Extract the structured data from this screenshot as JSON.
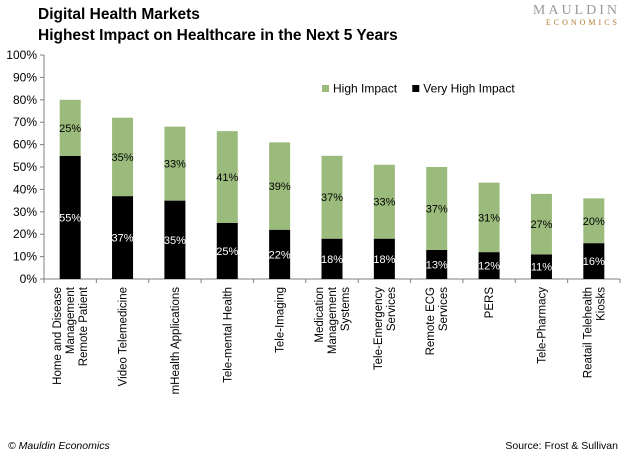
{
  "header": {
    "title_line1": "Digital Health Markets",
    "title_line2": "Highest Impact on Healthcare in the Next 5 Years",
    "logo_line1": "MAULDIN",
    "logo_line2": "ECONOMICS"
  },
  "footer": {
    "copyright": "© Mauldin Economics",
    "source": "Source: Frost & Sullivan"
  },
  "colors": {
    "high_impact": "#9bbb7c",
    "very_high_impact": "#000000",
    "axis": "#808080"
  },
  "chart_data": {
    "type": "bar",
    "stacked": true,
    "title": "",
    "xlabel": "",
    "ylabel": "",
    "ylim": [
      0,
      100
    ],
    "y_ticks": [
      "0%",
      "10%",
      "20%",
      "30%",
      "40%",
      "50%",
      "60%",
      "70%",
      "80%",
      "90%",
      "100%"
    ],
    "legend_position": "top-right",
    "categories": [
      [
        "Home and Disease",
        "Management",
        "Remote Patient"
      ],
      [
        "Video Telemedicine"
      ],
      [
        "mHealth Applications"
      ],
      [
        "Tele-mental Health"
      ],
      [
        "Tele-Imaging"
      ],
      [
        "Medication",
        "Management",
        "Systems"
      ],
      [
        "Tele-Emergency",
        "Services"
      ],
      [
        "Remote ECG",
        "Services"
      ],
      [
        "PERS"
      ],
      [
        "Tele-Pharmacy"
      ],
      [
        "Reatail Telehealth",
        "Kiosks"
      ]
    ],
    "series": [
      {
        "name": "Very High Impact",
        "values": [
          55,
          37,
          35,
          25,
          22,
          18,
          18,
          13,
          12,
          11,
          16
        ],
        "labels": [
          "55%",
          "37%",
          "35%",
          "25%",
          "22%",
          "18%",
          "18%",
          "13%",
          "12%",
          "11%",
          "16%"
        ]
      },
      {
        "name": "High Impact",
        "values": [
          25,
          35,
          33,
          41,
          39,
          37,
          33,
          37,
          31,
          27,
          20
        ],
        "labels": [
          "25%",
          "35%",
          "33%",
          "41%",
          "39%",
          "37%",
          "33%",
          "37%",
          "31%",
          "27%",
          "20%"
        ]
      }
    ],
    "legend": [
      "High Impact",
      "Very High Impact"
    ]
  }
}
